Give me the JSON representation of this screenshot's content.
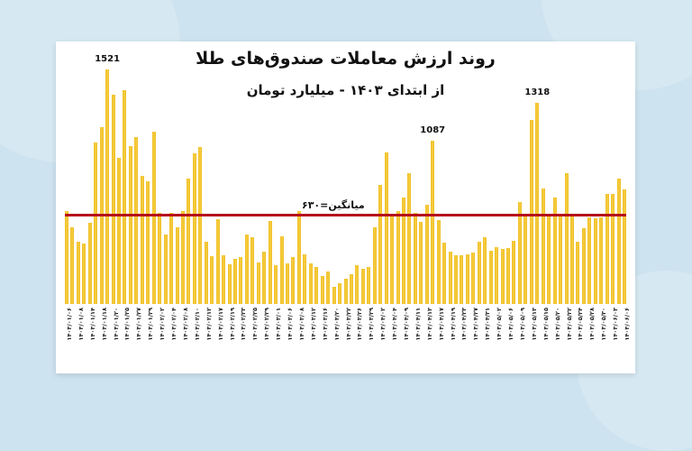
{
  "title": "روند ارزش معاملات صندوق‌های طلا",
  "subtitle": "از ابتدای ۱۴۰۳ - میلیارد تومان",
  "average": {
    "label": "میانگین=۶۳۰",
    "value": 630,
    "color": "#b5121b"
  },
  "colors": {
    "bar": "#f0bf22",
    "background": "#cde3ef",
    "card": "#ffffff"
  },
  "peak_labels": [
    {
      "text": "1521",
      "index": 7
    },
    {
      "text": "1087",
      "index": 63
    },
    {
      "text": "1318",
      "index": 81
    }
  ],
  "x_labels": [
    "۱۴۰۳/۰۱/۰۶",
    "۱۴۰۳/۰۱/۰۸",
    "۱۴۰۳/۰۱/۱۴",
    "۱۴۰۳/۰۱/۱۸",
    "۱۴۰۳/۰۱/۲۰",
    "۱۴۰۳/۰۱/۲۵",
    "۱۴۰۳/۰۱/۲۷",
    "۱۴۰۳/۰۱/۲۹",
    "۱۴۰۳/۰۲/۰۲",
    "۱۴۰۳/۰۲/۰۴",
    "۱۴۰۳/۰۲/۰۸",
    "۱۴۰۳/۰۲/۱۰",
    "۱۴۰۳/۰۲/۱۲",
    "۱۴۰۳/۰۲/۱۷",
    "۱۴۰۳/۰۲/۱۹",
    "۱۴۰۳/۰۲/۲۳",
    "۱۴۰۳/۰۲/۲۵",
    "۱۴۰۳/۰۲/۲۹",
    "۱۴۰۳/۰۳/۰۱",
    "۱۴۰۳/۰۳/۰۶",
    "۱۴۰۳/۰۳/۰۸",
    "۱۴۰۳/۰۳/۱۲",
    "۱۴۰۳/۰۳/۱۶",
    "۱۴۰۳/۰۳/۲۰",
    "۱۴۰۳/۰۳/۲۲",
    "۱۴۰۳/۰۳/۲۶",
    "۱۴۰۳/۰۳/۲۹",
    "۱۴۰۳/۰۴/۰۲",
    "۱۴۰۳/۰۴/۰۴",
    "۱۴۰۳/۰۴/۰۹",
    "۱۴۰۳/۰۴/۱۱",
    "۱۴۰۳/۰۴/۱۳",
    "۱۴۰۳/۰۴/۱۷",
    "۱۴۰۳/۰۴/۱۹",
    "۱۴۰۳/۰۴/۲۳",
    "۱۴۰۳/۰۴/۲۷",
    "۱۴۰۳/۰۴/۳۱",
    "۱۴۰۳/۰۵/۰۲",
    "۱۴۰۳/۰۵/۰۶",
    "۱۴۰۳/۰۵/۰۹",
    "۱۴۰۳/۰۵/۱۳",
    "۱۴۰۳/۰۵/۱۵",
    "۱۴۰۳/۰۵/۲۰",
    "۱۴۰۳/۰۵/۲۲",
    "۱۴۰۳/۰۵/۲۴",
    "۱۴۰۳/۰۵/۲۸",
    "۱۴۰۳/۰۵/۳۰",
    "۱۴۰۳/۰۶/۰۳",
    "۱۴۰۳/۰۶/۰۶"
  ],
  "chart_data": {
    "type": "bar",
    "title": "روند ارزش معاملات صندوق‌های طلا",
    "subtitle": "از ابتدای ۱۴۰۳ - میلیارد تومان",
    "xlabel": "",
    "ylabel": "میلیارد تومان",
    "ylim": [
      0,
      1600
    ],
    "grid": false,
    "annotations": [
      {
        "text": "1521",
        "value": 1521
      },
      {
        "text": "1087",
        "value": 1087
      },
      {
        "text": "1318",
        "value": 1318
      },
      {
        "text": "میانگین=۶۳۰",
        "type": "hline",
        "value": 630
      }
    ],
    "categories_shown": [
      "۱۴۰۳/۰۱/۰۶",
      "۱۴۰۳/۰۱/۰۸",
      "۱۴۰۳/۰۱/۱۴",
      "۱۴۰۳/۰۱/۱۸",
      "۱۴۰۳/۰۱/۲۰",
      "۱۴۰۳/۰۱/۲۵",
      "۱۴۰۳/۰۱/۲۷",
      "۱۴۰۳/۰۱/۲۹",
      "۱۴۰۳/۰۲/۰۲",
      "۱۴۰۳/۰۲/۰۴",
      "۱۴۰۳/۰۲/۰۸",
      "۱۴۰۳/۰۲/۱۰",
      "۱۴۰۳/۰۲/۱۲",
      "۱۴۰۳/۰۲/۱۷",
      "۱۴۰۳/۰۲/۱۹",
      "۱۴۰۳/۰۲/۲۳",
      "۱۴۰۳/۰۲/۲۵",
      "۱۴۰۳/۰۲/۲۹",
      "۱۴۰۳/۰۳/۰۱",
      "۱۴۰۳/۰۳/۰۶",
      "۱۴۰۳/۰۳/۰۸",
      "۱۴۰۳/۰۳/۱۲",
      "۱۴۰۳/۰۳/۱۶",
      "۱۴۰۳/۰۳/۲۰",
      "۱۴۰۳/۰۳/۲۲",
      "۱۴۰۳/۰۳/۲۶",
      "۱۴۰۳/۰۳/۲۹",
      "۱۴۰۳/۰۴/۰۲",
      "۱۴۰۳/۰۴/۰۴",
      "۱۴۰۳/۰۴/۰۹",
      "۱۴۰۳/۰۴/۱۱",
      "۱۴۰۳/۰۴/۱۳",
      "۱۴۰۳/۰۴/۱۷",
      "۱۴۰۳/۰۴/۱۹",
      "۱۴۰۳/۰۴/۲۳",
      "۱۴۰۳/۰۴/۲۷",
      "۱۴۰۳/۰۴/۳۱",
      "۱۴۰۳/۰۵/۰۲",
      "۱۴۰۳/۰۵/۰۶",
      "۱۴۰۳/۰۵/۰۹",
      "۱۴۰۳/۰۵/۱۳",
      "۱۴۰۳/۰۵/۱۵",
      "۱۴۰۳/۰۵/۲۰",
      "۱۴۰۳/۰۵/۲۲",
      "۱۴۰۳/۰۵/۲۴",
      "۱۴۰۳/۰۵/۲۸",
      "۱۴۰۳/۰۵/۳۰",
      "۱۴۰۳/۰۶/۰۳",
      "۱۴۰۳/۰۶/۰۶"
    ],
    "values": [
      657,
      558,
      470,
      459,
      586,
      1076,
      1170,
      1521,
      1367,
      982,
      1394,
      1053,
      1108,
      871,
      838,
      1141,
      644,
      512,
      649,
      556,
      655,
      858,
      1007,
      1046,
      470,
      382,
      608,
      388,
      333,
      366,
      377,
      514,
      498,
      344,
      410,
      597,
      327,
      503,
      339,
      377,
      657,
      393,
      339,
      316,
      261,
      289,
      195,
      217,
      245,
      272,
      327,
      305,
      316,
      558,
      817,
      1015,
      624,
      657,
      740,
      888,
      646,
      591,
      696,
      1087,
      602,
      465,
      410,
      388,
      388,
      393,
      404,
      470,
      498,
      415,
      437,
      426,
      432,
      476,
      712,
      635,
      1214,
      1318,
      794,
      635,
      740,
      635,
      888,
      624,
      470,
      553,
      619,
      613,
      619,
      762,
      762,
      855,
      789
    ]
  }
}
